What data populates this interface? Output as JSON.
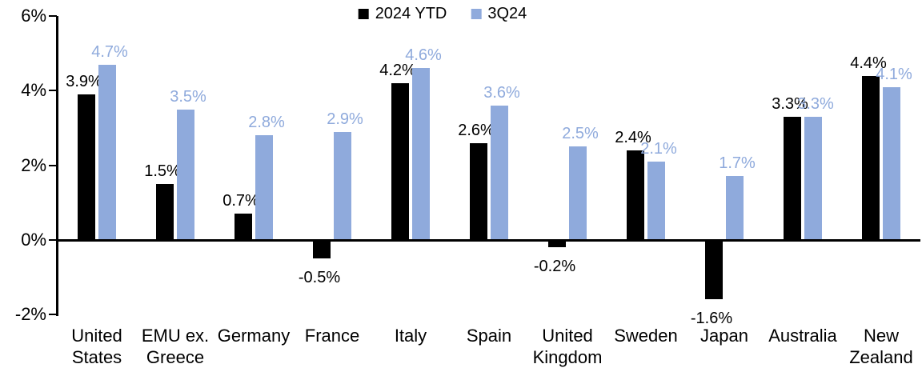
{
  "chart_data": {
    "type": "bar",
    "title": "",
    "categories": [
      "United States",
      "EMU ex. Greece",
      "Germany",
      "France",
      "Italy",
      "Spain",
      "United Kingdom",
      "Sweden",
      "Japan",
      "Australia",
      "New Zealand"
    ],
    "category_lines": [
      [
        "United",
        "States"
      ],
      [
        "EMU ex.",
        "Greece"
      ],
      [
        "Germany"
      ],
      [
        "France"
      ],
      [
        "Italy"
      ],
      [
        "Spain"
      ],
      [
        "United",
        "Kingdom"
      ],
      [
        "Sweden"
      ],
      [
        "Japan"
      ],
      [
        "Australia"
      ],
      [
        "New",
        "Zealand"
      ]
    ],
    "series": [
      {
        "name": "2024 YTD",
        "color": "#000000",
        "values": [
          3.9,
          1.5,
          0.7,
          -0.5,
          4.2,
          2.6,
          -0.2,
          2.4,
          -1.6,
          3.3,
          4.4
        ]
      },
      {
        "name": "3Q24",
        "color": "#8FAADC",
        "values": [
          4.7,
          3.5,
          2.8,
          2.9,
          4.6,
          3.6,
          2.5,
          2.1,
          1.7,
          3.3,
          4.1
        ]
      }
    ],
    "data_labels": [
      [
        "3.9%",
        "1.5%",
        "0.7%",
        "-0.5%",
        "4.2%",
        "2.6%",
        "-0.2%",
        "2.4%",
        "-1.6%",
        "3.3%",
        "4.4%"
      ],
      [
        "4.7%",
        "3.5%",
        "2.8%",
        "2.9%",
        "4.6%",
        "3.6%",
        "2.5%",
        "2.1%",
        "1.7%",
        "3.3%",
        "4.1%"
      ]
    ],
    "xlabel": "",
    "ylabel": "",
    "ylim": [
      -2,
      6
    ],
    "yticks": [
      6,
      4,
      2,
      0,
      -2
    ],
    "ytick_labels": [
      "6%",
      "4%",
      "2%",
      "0%",
      "-2%"
    ],
    "grid": false,
    "legend_position": "top-center",
    "axis_color": "#000000",
    "background_color": "#FFFFFF"
  }
}
